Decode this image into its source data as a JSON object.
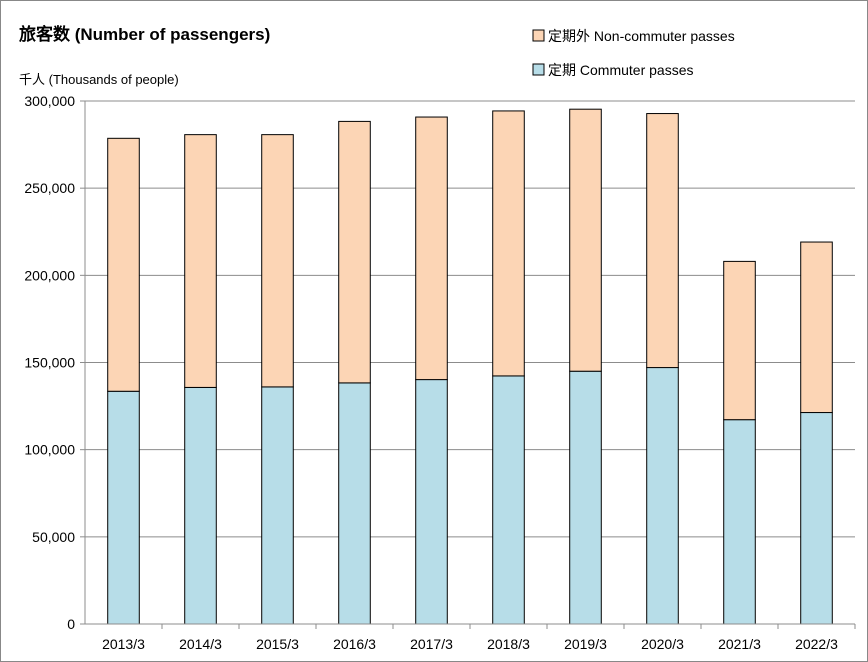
{
  "chart_data": {
    "type": "bar",
    "stacked": true,
    "title": "旅客数 (Number of passengers)",
    "unit_label": "千人 (Thousands of people)",
    "categories": [
      "2013/3",
      "2014/3",
      "2015/3",
      "2016/3",
      "2017/3",
      "2018/3",
      "2019/3",
      "2020/3",
      "2021/3",
      "2022/3"
    ],
    "series": [
      {
        "name": "定期 Commuter passes",
        "color": "#b7dde8",
        "values": [
          133500,
          135700,
          136000,
          138300,
          140200,
          142300,
          145000,
          147100,
          117200,
          121300
        ]
      },
      {
        "name": "定期外 Non-commuter passes",
        "color": "#fcd5b5",
        "values": [
          145100,
          145000,
          144700,
          150000,
          150600,
          152000,
          150300,
          145700,
          90800,
          97800
        ]
      }
    ],
    "ylim": [
      0,
      300000
    ],
    "yticks": [
      0,
      50000,
      100000,
      150000,
      200000,
      250000,
      300000
    ],
    "ytick_labels": [
      "0",
      "50,000",
      "100,000",
      "150,000",
      "200,000",
      "250,000",
      "300,000"
    ],
    "grid": true,
    "legend_position": "top-right"
  }
}
